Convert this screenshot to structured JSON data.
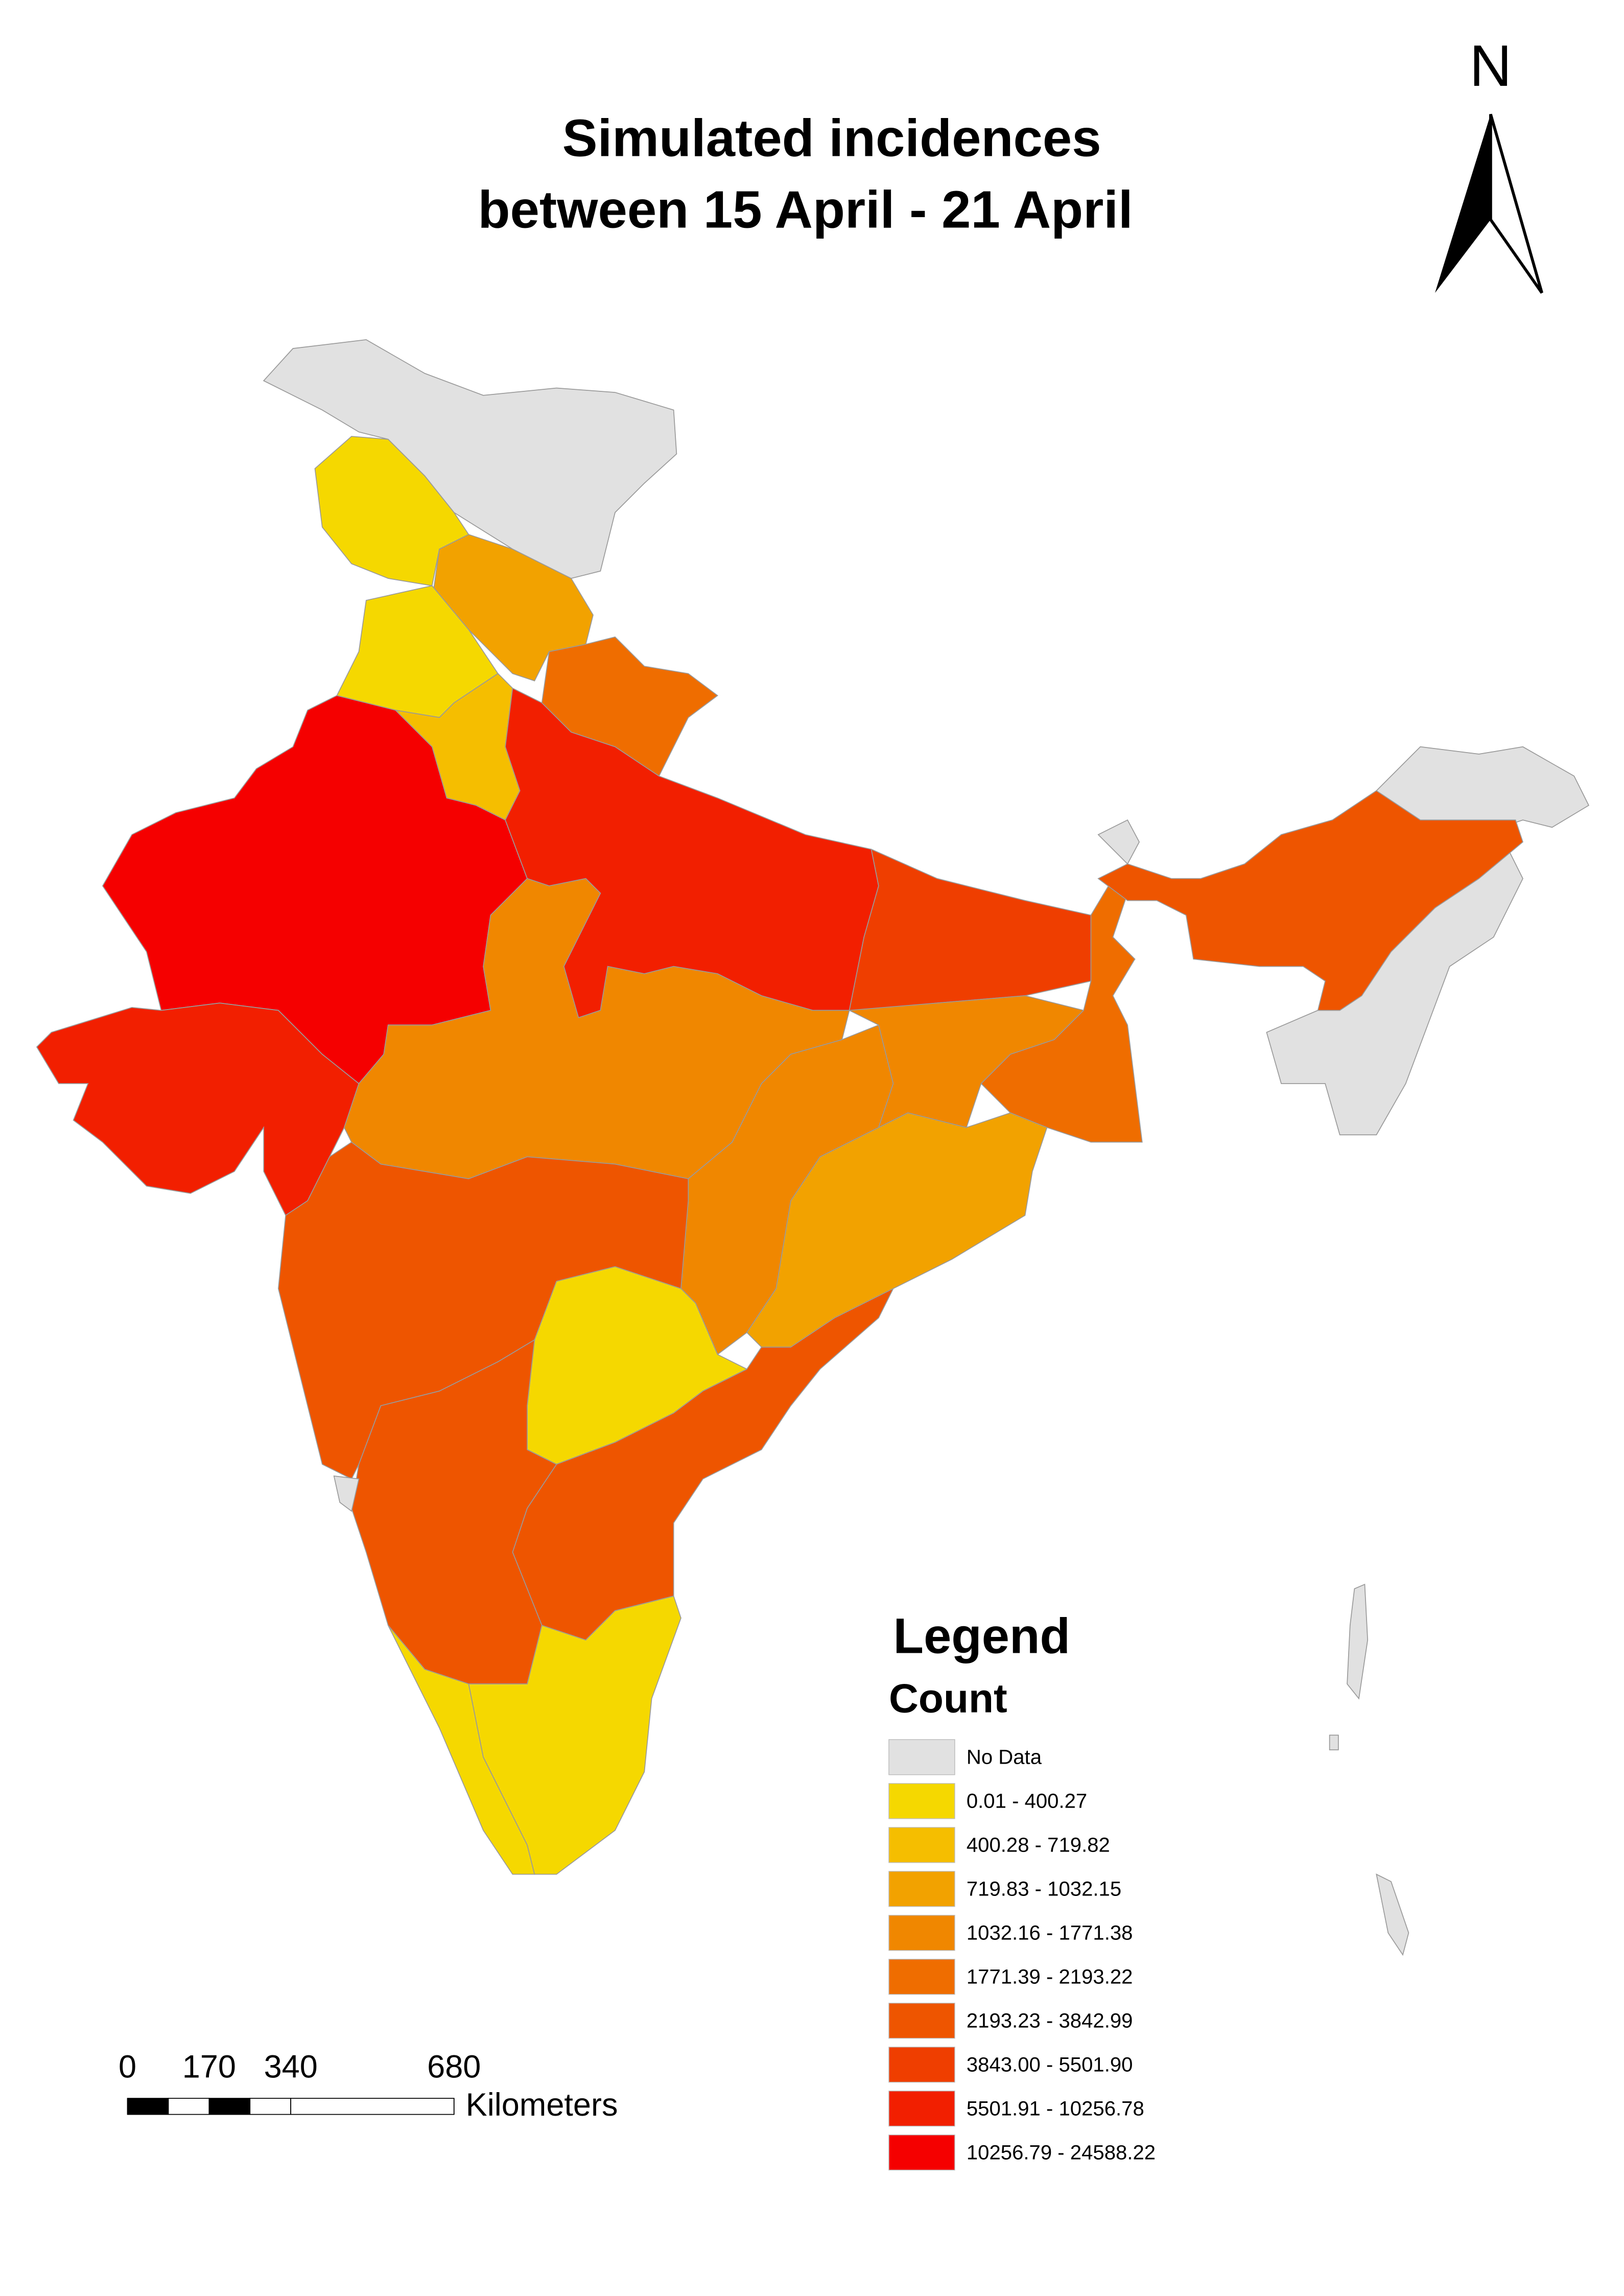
{
  "title_lines": [
    "Simulated incidences",
    "between 15 April - 21 April"
  ],
  "north_arrow": "N",
  "legend": {
    "title": "Legend",
    "subtitle": "Count",
    "items": [
      {
        "label": "No Data",
        "color": "#e1e1e1"
      },
      {
        "label": "0.01 - 400.27",
        "color": "#f5d800"
      },
      {
        "label": "400.28 - 719.82",
        "color": "#f5be00"
      },
      {
        "label": "719.83 - 1032.15",
        "color": "#f2a200"
      },
      {
        "label": "1032.16 - 1771.38",
        "color": "#f08700"
      },
      {
        "label": "1771.39 - 2193.22",
        "color": "#ef6d00"
      },
      {
        "label": "2193.23 - 3842.99",
        "color": "#ee5500"
      },
      {
        "label": "3843.00 - 5501.90",
        "color": "#ef3e00"
      },
      {
        "label": "5501.91 - 10256.78",
        "color": "#f21f00"
      },
      {
        "label": "10256.79 - 24588.22",
        "color": "#f50000"
      }
    ]
  },
  "scale_bar": {
    "ticks": [
      0,
      170,
      340,
      680
    ],
    "unit": "Kilometers"
  }
}
